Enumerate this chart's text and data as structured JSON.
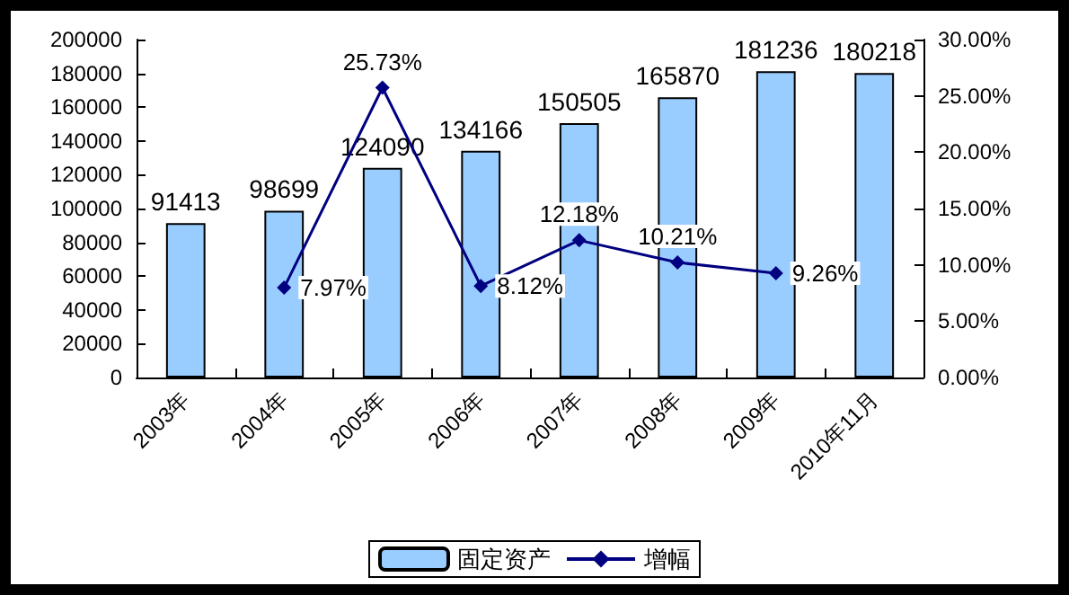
{
  "chart_data": {
    "type": "bar",
    "categories": [
      "2003年",
      "2004年",
      "2005年",
      "2006年",
      "2007年",
      "2008年",
      "2009年",
      "2010年11月"
    ],
    "series": [
      {
        "name": "固定资产",
        "color": "#99ccff",
        "values": [
          91413,
          98699,
          124090,
          134166,
          150505,
          165870,
          181236,
          180218
        ],
        "data_labels": true
      },
      {
        "name": "增幅",
        "type": "line",
        "axis": "y2",
        "color": "#000080",
        "marker": "diamond",
        "values": [
          null,
          7.97,
          25.73,
          8.12,
          12.18,
          10.21,
          9.26,
          null
        ],
        "value_labels": [
          null,
          "7.97%",
          "25.73%",
          "8.12%",
          "12.18%",
          "10.21%",
          "9.26%",
          null
        ]
      }
    ],
    "ylim": [
      0,
      200000
    ],
    "yticks": [
      0,
      20000,
      40000,
      60000,
      80000,
      100000,
      120000,
      140000,
      160000,
      180000,
      200000
    ],
    "y2lim": [
      0,
      30
    ],
    "y2ticks": [
      {
        "value": 0,
        "label": "0.00%"
      },
      {
        "value": 5,
        "label": "5.00%"
      },
      {
        "value": 10,
        "label": "10.00%"
      },
      {
        "value": 15,
        "label": "15.00%"
      },
      {
        "value": 20,
        "label": "20.00%"
      },
      {
        "value": 25,
        "label": "25.00%"
      },
      {
        "value": 30,
        "label": "30.00%"
      }
    ],
    "legend": "bottom",
    "grid": false
  }
}
